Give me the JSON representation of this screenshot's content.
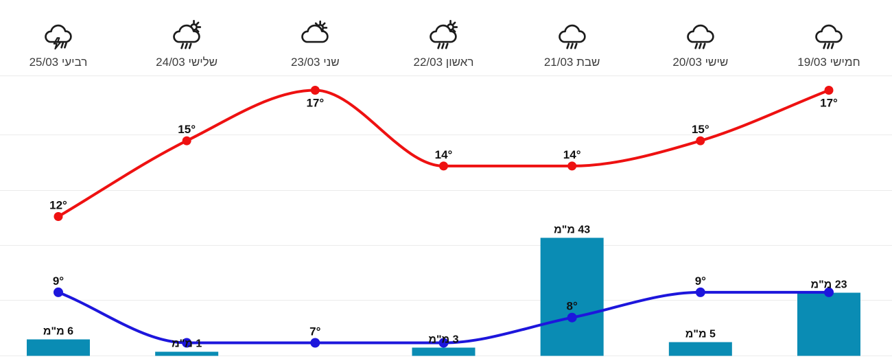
{
  "widget": {
    "kind": "weekly-weather-forecast",
    "language": "hebrew",
    "background": "#ffffff"
  },
  "chart_data": {
    "type": "line+bar",
    "direction": "rtl",
    "title": "",
    "legend_position": "none",
    "grid": true,
    "series": [
      {
        "name": "high-temp",
        "type": "line",
        "color": "#ee1111",
        "unit": "°"
      },
      {
        "name": "low-temp",
        "type": "line",
        "color": "#1d16dc",
        "unit": "°"
      },
      {
        "name": "precipitation",
        "type": "bar",
        "color": "#0a8cb4",
        "unit": "מ\"מ"
      }
    ],
    "days": [
      {
        "name": "חמישי",
        "date": "19/03",
        "icon": "rain",
        "high": 17,
        "high_label": "17°",
        "high_label_position": "below",
        "low": 9,
        "low_label": null,
        "precip_mm": 23,
        "precip_label": "23 מ\"מ"
      },
      {
        "name": "שישי",
        "date": "20/03",
        "icon": "rain",
        "high": 15,
        "high_label": "15°",
        "high_label_position": "above",
        "low": 9,
        "low_label": "9°",
        "precip_mm": 5,
        "precip_label": "5 מ\"מ"
      },
      {
        "name": "שבת",
        "date": "21/03",
        "icon": "rain",
        "high": 14,
        "high_label": "14°",
        "high_label_position": "above",
        "low": 8,
        "low_label": "8°",
        "precip_mm": 43,
        "precip_label": "43 מ\"מ"
      },
      {
        "name": "ראשון",
        "date": "22/03",
        "icon": "sun-cloud-rain",
        "high": 14,
        "high_label": "14°",
        "high_label_position": "above",
        "low": 7,
        "low_label": null,
        "precip_mm": 3,
        "precip_label": "3 מ\"מ"
      },
      {
        "name": "שני",
        "date": "23/03",
        "icon": "partly-cloudy",
        "high": 17,
        "high_label": "17°",
        "high_label_position": "below",
        "low": 7,
        "low_label": "7°",
        "precip_mm": null,
        "precip_label": null
      },
      {
        "name": "שלישי",
        "date": "24/03",
        "icon": "sun-cloud-rain",
        "high": 15,
        "high_label": "15°",
        "high_label_position": "above",
        "low": 7,
        "low_label": null,
        "precip_mm": 1,
        "precip_label": "1 מ\"מ"
      },
      {
        "name": "רביעי",
        "date": "25/03",
        "icon": "thunderstorm",
        "high": 12,
        "high_label": "12°",
        "high_label_position": "above",
        "low": 9,
        "low_label": "9°",
        "precip_mm": 6,
        "precip_label": "6 מ\"מ"
      }
    ],
    "colors": {
      "grid": "#ebebeb",
      "value_label": "#111111",
      "day_label": "#3c3c3c",
      "icon_stroke": "#1c1c1c"
    }
  }
}
